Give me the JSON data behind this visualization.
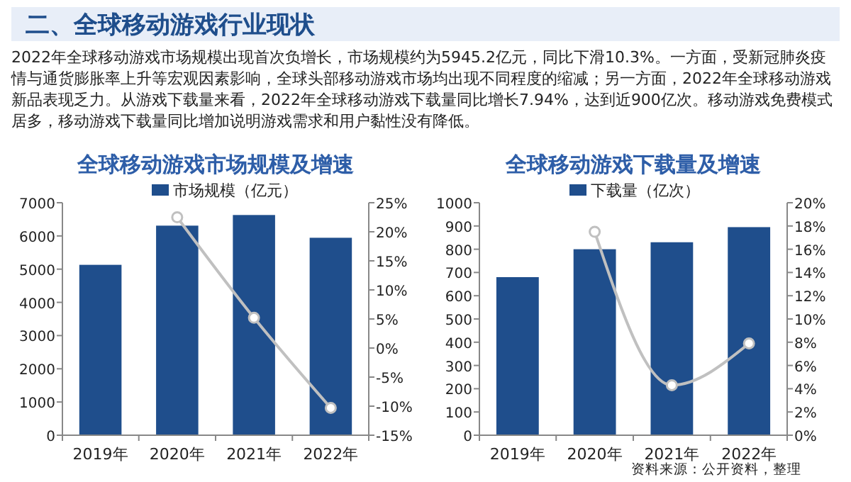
{
  "chart_data": [
    {
      "type": "other",
      "title": "二、全球移动游戏行业现状",
      "annotations": [
        "2022年全球移动游戏市场规模出现首次负增长，市场规模约为5945.2亿元，同比下滑10.3%。一方面，受新冠肺炎疫情与通货膨胀率上升等宏观因素影响，全球头部移动游戏市场均出现不同程度的缩减；另一方面，2022年全球移动游戏新品表现乏力。从游戏下载量来看，2022年全球移动游戏下载量同比增长7.94%，达到近900亿次。移动游戏免费模式居多，移动游戏下载量同比增加说明游戏需求和用户黏性没有降低。"
      ]
    },
    {
      "type": "bar",
      "title": "全球移动游戏市场规模及增速",
      "categories": [
        "2019年",
        "2020年",
        "2021年",
        "2022年"
      ],
      "legend": "top",
      "marker": "circle",
      "series": [
        {
          "name": "市场规模（亿元）",
          "color": "#1f4e8c",
          "values": [
            5130,
            6310,
            6630,
            5945
          ]
        },
        {
          "type": "line",
          "axis": "y2",
          "color": "#c0c0c0",
          "values": [
            null,
            22.5,
            5.2,
            -10.3
          ]
        }
      ],
      "ylim": [
        0,
        7000
      ],
      "yticks": [
        0,
        1000,
        2000,
        3000,
        4000,
        5000,
        6000,
        7000
      ],
      "y2lim": [
        -15,
        25
      ],
      "y2ticks": [
        {
          "value": -15,
          "label": "-15%"
        },
        {
          "value": -10,
          "label": "-10%"
        },
        {
          "value": -5,
          "label": "-5%"
        },
        {
          "value": 0,
          "label": "0%"
        },
        {
          "value": 5,
          "label": "5%"
        },
        {
          "value": 10,
          "label": "10%"
        },
        {
          "value": 15,
          "label": "15%"
        },
        {
          "value": 20,
          "label": "20%"
        },
        {
          "value": 25,
          "label": "25%"
        }
      ]
    },
    {
      "type": "bar",
      "title": "全球移动游戏下载量及增速",
      "categories": [
        "2019年",
        "2020年",
        "2021年",
        "2022年"
      ],
      "legend": "top",
      "marker": "circle",
      "series": [
        {
          "name": "下载量（亿次）",
          "color": "#1f4e8c",
          "values": [
            680,
            800,
            830,
            895
          ]
        },
        {
          "type": "line",
          "axis": "y2",
          "color": "#c0c0c0",
          "values": [
            null,
            17.5,
            4.3,
            7.9
          ]
        }
      ],
      "ylim": [
        0,
        1000
      ],
      "yticks": [
        0,
        100,
        200,
        300,
        400,
        500,
        600,
        700,
        800,
        900,
        1000
      ],
      "y2lim": [
        0,
        20
      ],
      "y2ticks": [
        {
          "value": 0,
          "label": "0%"
        },
        {
          "value": 2,
          "label": "2%"
        },
        {
          "value": 4,
          "label": "4%"
        },
        {
          "value": 6,
          "label": "6%"
        },
        {
          "value": 8,
          "label": "8%"
        },
        {
          "value": 10,
          "label": "10%"
        },
        {
          "value": 12,
          "label": "12%"
        },
        {
          "value": 14,
          "label": "14%"
        },
        {
          "value": 16,
          "label": "16%"
        },
        {
          "value": 18,
          "label": "18%"
        },
        {
          "value": 20,
          "label": "20%"
        }
      ],
      "annotations": [
        "资料来源：公开资料，整理"
      ]
    }
  ]
}
